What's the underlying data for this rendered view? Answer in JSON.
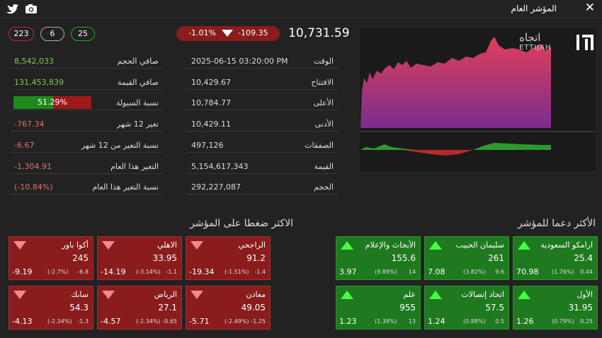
{
  "header": {
    "title": "المؤشر العام"
  },
  "index": {
    "value": "10,731.59",
    "change": "-109.35",
    "change_pct": "-1.01%",
    "declines": "223",
    "unchanged": "6",
    "advances": "25"
  },
  "logo": {
    "arabic": "اتجاه",
    "latin": "ETTIJAH"
  },
  "stats_left": [
    {
      "label": "صافي الحجم",
      "value": "8,542,033"
    },
    {
      "label": "صافي القيمة",
      "value": "131,453,839"
    },
    {
      "label": "نسبة السيولة",
      "value": 51.29,
      "value_label": "51.29%"
    },
    {
      "label": "تغير 12 شهر",
      "value": "-767.34"
    },
    {
      "label": "نسبة التغير من 12 شهر",
      "value": "-6.67"
    },
    {
      "label": "التغير هذا العام",
      "value": "-1,304.91"
    },
    {
      "label": "نسبة التغير هذا العام",
      "value": "(-10.84%)"
    }
  ],
  "stats_mid": [
    {
      "label": "الوقت",
      "value": "2025-06-15 03:20:00 PM"
    },
    {
      "label": "الافتتاح",
      "value": "10,429.67"
    },
    {
      "label": "الأعلى",
      "value": "10,784.77"
    },
    {
      "label": "الأدنى",
      "value": "10,429.11"
    },
    {
      "label": "الصفقات",
      "value": "497,126"
    },
    {
      "label": "القيمة",
      "value": "5,154,617,343"
    },
    {
      "label": "الحجم",
      "value": "292,227,087"
    }
  ],
  "pressure": {
    "title": "الاكثر ضغطا على المؤشر",
    "cards": [
      {
        "name": "الراجحي",
        "price": "91.2",
        "change_pct": "(-1.51%)",
        "change": "-1.4",
        "impact": "-19.34"
      },
      {
        "name": "الاهلي",
        "price": "33.95",
        "change_pct": "(-3.14%)",
        "change": "-1.1",
        "impact": "-14.19"
      },
      {
        "name": "أكوا باور",
        "price": "245",
        "change_pct": "(-2.7%)",
        "change": "-6.8",
        "impact": "-9.19"
      },
      {
        "name": "معادن",
        "price": "49.05",
        "change_pct": "(-2.49%)",
        "change": "-1.25",
        "impact": "-5.71"
      },
      {
        "name": "الرياض",
        "price": "27.1",
        "change_pct": "(-2.34%)",
        "change": "-0.65",
        "impact": "-4.57"
      },
      {
        "name": "سابك",
        "price": "54.3",
        "change_pct": "(-2.34%)",
        "change": "-1.3",
        "impact": "-4.13"
      }
    ]
  },
  "support": {
    "title": "الأكثر دعما للمؤشر",
    "cards": [
      {
        "name": "ارامكو السعودية",
        "price": "25.4",
        "change_pct": "(1.76%)",
        "change": "0.44",
        "impact": "70.98"
      },
      {
        "name": "سليمان الحبيب",
        "price": "261",
        "change_pct": "(3.82%)",
        "change": "9.6",
        "impact": "7.08"
      },
      {
        "name": "الأبحاث والإعلام",
        "price": "155.6",
        "change_pct": "(9.89%)",
        "change": "14",
        "impact": "3.97"
      },
      {
        "name": "الأول",
        "price": "31.95",
        "change_pct": "(0.79%)",
        "change": "0.25",
        "impact": "1.26"
      },
      {
        "name": "اتحاد إتصالات",
        "price": "57.5",
        "change_pct": "(0.88%)",
        "change": "0.5",
        "impact": "1.24"
      },
      {
        "name": "علم",
        "price": "955",
        "change_pct": "(1.38%)",
        "change": "13",
        "impact": "1.23"
      }
    ]
  }
}
